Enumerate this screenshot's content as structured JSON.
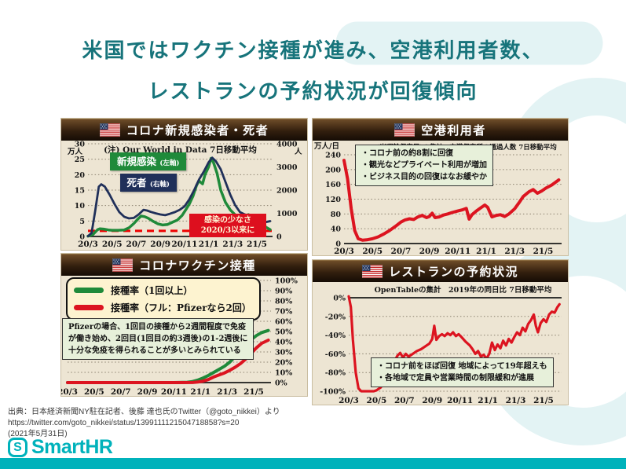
{
  "page": {
    "title_line1": "米国ではワクチン接種が進み、空港利用者数、",
    "title_line2": "レストランの予約状況が回復傾向",
    "colors": {
      "title_teal": "#17747b",
      "accent_teal": "#00b2bb",
      "panel_cream": "#ede5d3",
      "header_brown": "#321f0e",
      "green_line": "#1f8a3a",
      "navy_line": "#20305a",
      "red_line": "#dc1420",
      "callout_red": "#dd0f1e",
      "swoosh": "#e3f3f4"
    }
  },
  "chart_data": [
    {
      "id": "covid-cases-deaths",
      "type": "line",
      "title": "コロナ新規感染者・死者",
      "note": "(注) Our World in Data  7日移動平均",
      "left_axis": {
        "unit": "万人",
        "unit_pos": "below",
        "labels": [
          "0",
          "5",
          "10",
          "15",
          "20",
          "25",
          "30"
        ],
        "values": [
          0,
          5,
          10,
          15,
          20,
          25,
          30
        ],
        "range": [
          0,
          30
        ]
      },
      "right_axis": {
        "unit": "人",
        "unit_pos": "below",
        "labels": [
          "0",
          "1000",
          "2000",
          "3000",
          "4000"
        ],
        "values": [
          0,
          1000,
          2000,
          3000,
          4000
        ],
        "range": [
          0,
          4000
        ]
      },
      "grid_axis": "left",
      "baseline": "bottom",
      "x_ticks": [
        "20/3",
        "20/5",
        "20/7",
        "20/9",
        "20/11",
        "21/1",
        "21/3",
        "21/5"
      ],
      "x_tick_pos": [
        0,
        2,
        4,
        6,
        8,
        10,
        12,
        14
      ],
      "x_range": [
        0,
        15.3
      ],
      "refline": {
        "axis": "left",
        "y": 1.8,
        "color": "#ee0000"
      },
      "legend": [
        {
          "label": "新規感染",
          "sub": "(左軸)",
          "color": "#1f8a3a"
        },
        {
          "label": "死者",
          "sub": "(右軸)",
          "color": "#20305a"
        }
      ],
      "callout": {
        "lines": [
          "感染の少なさ",
          "2020/3以来に"
        ]
      },
      "series": [
        {
          "name": "新規感染",
          "axis": "left",
          "color": "#1f8a3a",
          "width": 3.5,
          "x": [
            0,
            0.4,
            0.8,
            1,
            1.3,
            1.7,
            2,
            2.5,
            3,
            3.4,
            3.8,
            4.1,
            4.4,
            4.7,
            5,
            5.4,
            5.8,
            6.2,
            6.6,
            7,
            7.4,
            7.8,
            8.1,
            8.4,
            8.7,
            9,
            9.2,
            9.5,
            9.7,
            10,
            10.2,
            10.4,
            10.7,
            11,
            11.4,
            11.8,
            12.2,
            12.6,
            13,
            13.3,
            13.6,
            14,
            14.4,
            14.8,
            15.1
          ],
          "y": [
            0.1,
            0.6,
            2.2,
            2.5,
            2.4,
            2.1,
            2,
            2,
            2.1,
            2.8,
            4.2,
            5.5,
            6.6,
            6.4,
            5.9,
            4.9,
            4.1,
            3.7,
            3.9,
            4.6,
            5.3,
            6.8,
            8.6,
            10.5,
            13,
            16.5,
            18,
            17,
            20,
            22.5,
            25.3,
            24,
            20.5,
            15,
            11,
            8.6,
            7,
            6.4,
            6.6,
            7.1,
            6.3,
            5.2,
            4,
            2.9,
            2.2
          ]
        },
        {
          "name": "死者",
          "axis": "right",
          "color": "#20305a",
          "width": 2.8,
          "x": [
            0,
            0.3,
            0.6,
            0.9,
            1.1,
            1.4,
            1.8,
            2.2,
            2.6,
            3,
            3.4,
            3.8,
            4.2,
            4.6,
            4.9,
            5.2,
            5.6,
            6,
            6.4,
            6.8,
            7.2,
            7.6,
            8,
            8.4,
            8.8,
            9.2,
            9.6,
            10,
            10.3,
            10.6,
            11,
            11.4,
            11.8,
            12.2,
            12.6,
            13,
            13.4,
            13.8,
            14.2,
            14.6,
            15.1
          ],
          "y": [
            10,
            150,
            1100,
            2150,
            2250,
            2150,
            1800,
            1400,
            1050,
            850,
            780,
            800,
            950,
            1150,
            1120,
            1060,
            1000,
            950,
            920,
            980,
            1050,
            1150,
            1300,
            1600,
            2000,
            2450,
            2800,
            3200,
            3400,
            3250,
            2900,
            2350,
            1800,
            1350,
            1050,
            950,
            900,
            820,
            700,
            600,
            660
          ]
        }
      ]
    },
    {
      "id": "airport-users",
      "type": "line",
      "title": "空港利用者",
      "note": "TSA(米運輸保安局)の集計　空港保安所の通過人数 7日移動平均",
      "left_axis": {
        "unit": "万人/日",
        "unit_pos": "above",
        "labels": [
          "0",
          "40",
          "80",
          "120",
          "160",
          "200",
          "240"
        ],
        "values": [
          0,
          40,
          80,
          120,
          160,
          200,
          240
        ],
        "range": [
          0,
          240
        ]
      },
      "grid_axis": "left",
      "baseline": "bottom",
      "x_ticks": [
        "20/3",
        "20/5",
        "20/7",
        "20/9",
        "20/11",
        "21/1",
        "21/3",
        "21/5"
      ],
      "x_tick_pos": [
        0,
        2,
        4,
        6,
        8,
        10,
        12,
        14
      ],
      "x_range": [
        0,
        15.3
      ],
      "box": {
        "lines": [
          "・コロナ前の約8割に回復",
          "・観光などプライベート利用が増加",
          "・ビジネス目的の回復はなお緩やか"
        ]
      },
      "series": [
        {
          "name": "空港保安所の通過人数",
          "axis": "left",
          "color": "#dc1420",
          "width": 4,
          "x": [
            0,
            0.25,
            0.5,
            0.75,
            1,
            1.3,
            1.6,
            2,
            2.4,
            2.8,
            3.2,
            3.6,
            4,
            4.3,
            4.6,
            4.9,
            5.2,
            5.5,
            5.8,
            6,
            6.2,
            6.4,
            6.7,
            7,
            7.3,
            7.6,
            8,
            8.3,
            8.6,
            8.8,
            9,
            9.3,
            9.6,
            9.9,
            10.1,
            10.4,
            10.7,
            11,
            11.3,
            11.6,
            12,
            12.3,
            12.6,
            13,
            13.3,
            13.6,
            13.9,
            14.2,
            14.6,
            15.1
          ],
          "y": [
            225,
            175,
            95,
            35,
            13,
            9,
            10,
            13,
            18,
            26,
            35,
            46,
            58,
            64,
            67,
            65,
            72,
            76,
            70,
            73,
            82,
            70,
            72,
            77,
            80,
            84,
            88,
            91,
            95,
            66,
            78,
            88,
            96,
            104,
            98,
            72,
            76,
            78,
            73,
            80,
            94,
            110,
            127,
            140,
            146,
            136,
            142,
            150,
            158,
            172
          ]
        }
      ]
    },
    {
      "id": "vaccination",
      "type": "line",
      "title": "コロナワクチン接種",
      "right_axis": {
        "labels": [
          "0%",
          "10%",
          "20%",
          "30%",
          "40%",
          "50%",
          "60%",
          "70%",
          "80%",
          "90%",
          "100%"
        ],
        "values": [
          0,
          10,
          20,
          30,
          40,
          50,
          60,
          70,
          80,
          90,
          100
        ],
        "range": [
          0,
          100
        ]
      },
      "grid_axis": "right",
      "baseline": "bottom",
      "x_ticks": [
        "20/3",
        "20/5",
        "20/7",
        "20/9",
        "20/11",
        "21/1",
        "21/3",
        "21/5"
      ],
      "x_tick_pos": [
        0,
        2,
        4,
        6,
        8,
        10,
        12,
        14
      ],
      "x_range": [
        0,
        15.3
      ],
      "legend": [
        {
          "label": "接種率（1回以上）",
          "color": "#1f8a3a"
        },
        {
          "label": "接種率（フル：Pfizerなら2回）",
          "color": "#dc1420"
        }
      ],
      "box": {
        "lines": [
          "Pfizerの場合、1回目の接種から2週間程度で免疫",
          "が働き始め、2回目(1回目の約3週後)の1-2週後に",
          "十分な免疫を得られることが多いとみられている"
        ]
      },
      "series": [
        {
          "name": "接種率（1回以上）",
          "axis": "right",
          "color": "#1f8a3a",
          "width": 4,
          "x": [
            0,
            2,
            4,
            6,
            8,
            9,
            9.4,
            9.8,
            10.2,
            10.6,
            11,
            11.4,
            11.8,
            12.2,
            12.6,
            13,
            13.4,
            13.8,
            14.2,
            14.6,
            15.1
          ],
          "y": [
            0,
            0,
            0,
            0,
            0,
            0.3,
            1,
            2.5,
            4.5,
            7,
            10,
            13,
            16,
            20,
            25.5,
            31,
            37,
            42,
            46,
            49,
            51
          ]
        },
        {
          "name": "接種率（フル）",
          "axis": "right",
          "color": "#dc1420",
          "width": 4,
          "x": [
            0,
            2,
            4,
            6,
            8,
            9.4,
            9.8,
            10.2,
            10.6,
            11,
            11.4,
            11.8,
            12.2,
            12.6,
            13,
            13.4,
            13.8,
            14.2,
            14.6,
            15.1
          ],
          "y": [
            0,
            0,
            0,
            0,
            0,
            0.1,
            0.5,
            1.5,
            3,
            5.5,
            7.5,
            9.5,
            12,
            15,
            18.5,
            23,
            28.5,
            34,
            38.5,
            41.5
          ]
        }
      ]
    },
    {
      "id": "restaurant-reservations",
      "type": "line",
      "title": "レストランの予約状況",
      "note": "OpenTableの集計　2019年の同日比 7日移動平均",
      "left_axis": {
        "labels": [
          "0%",
          "-20%",
          "-40%",
          "-60%",
          "-80%",
          "-100%"
        ],
        "values": [
          0,
          -20,
          -40,
          -60,
          -80,
          -100
        ],
        "range": [
          -100,
          0
        ]
      },
      "grid_axis": "left",
      "baseline": "top",
      "x_ticks": [
        "20/3",
        "20/5",
        "20/7",
        "20/9",
        "20/11",
        "21/1",
        "21/3",
        "21/5"
      ],
      "x_tick_pos": [
        0,
        2,
        4,
        6,
        8,
        10,
        12,
        14
      ],
      "x_range": [
        0,
        15.3
      ],
      "box": {
        "lines": [
          "・コロナ前をほぼ回復 地域によって19年超えも",
          "・各地域で定員や営業時間の制限緩和が進展"
        ]
      },
      "series": [
        {
          "name": "2019年の同日比",
          "axis": "left",
          "color": "#dc1420",
          "width": 3.2,
          "x": [
            0,
            0.15,
            0.3,
            0.5,
            0.7,
            0.9,
            1.2,
            1.5,
            1.8,
            2,
            2.3,
            2.6,
            2.9,
            3.2,
            3.5,
            3.7,
            3.9,
            4.1,
            4.3,
            4.6,
            4.9,
            5.2,
            5.5,
            5.8,
            6,
            6.15,
            6.3,
            6.5,
            6.7,
            6.9,
            7.1,
            7.3,
            7.5,
            7.7,
            7.9,
            8.1,
            8.4,
            8.7,
            8.9,
            9.1,
            9.3,
            9.5,
            9.7,
            9.9,
            10.1,
            10.3,
            10.5,
            10.7,
            10.9,
            11.1,
            11.3,
            11.5,
            11.7,
            11.9,
            12.1,
            12.3,
            12.5,
            12.7,
            12.9,
            13.1,
            13.3,
            13.45,
            13.6,
            13.8,
            14,
            14.2,
            14.4,
            14.6,
            14.8,
            15,
            15.15
          ],
          "y": [
            1.5,
            -10,
            -45,
            -80,
            -97,
            -100,
            -100,
            -100,
            -100,
            -99,
            -96,
            -89,
            -80,
            -70,
            -62,
            -59,
            -64,
            -60,
            -63,
            -60,
            -57,
            -55,
            -52,
            -49,
            -44,
            -30,
            -45,
            -41,
            -39,
            -41,
            -38,
            -40,
            -37,
            -41,
            -39,
            -42,
            -47,
            -51,
            -55,
            -60,
            -57,
            -63,
            -61,
            -65,
            -60,
            -48,
            -56,
            -50,
            -54,
            -46,
            -51,
            -44,
            -48,
            -42,
            -37,
            -40,
            -32,
            -36,
            -28,
            -24,
            -18,
            -30,
            -37,
            -27,
            -23,
            -26,
            -18,
            -15,
            -16,
            -10,
            -7
          ]
        }
      ]
    }
  ],
  "source": {
    "line1": "出典：日本経済新聞NY駐在記者、後藤 達也氏のTwitter（@goto_nikkei）より",
    "line2": "https://twitter.com/goto_nikkei/status/1399111121504718858?s=20",
    "line3": "(2021年5月31日)"
  },
  "logo": {
    "mark": "S",
    "text": "SmartHR"
  }
}
